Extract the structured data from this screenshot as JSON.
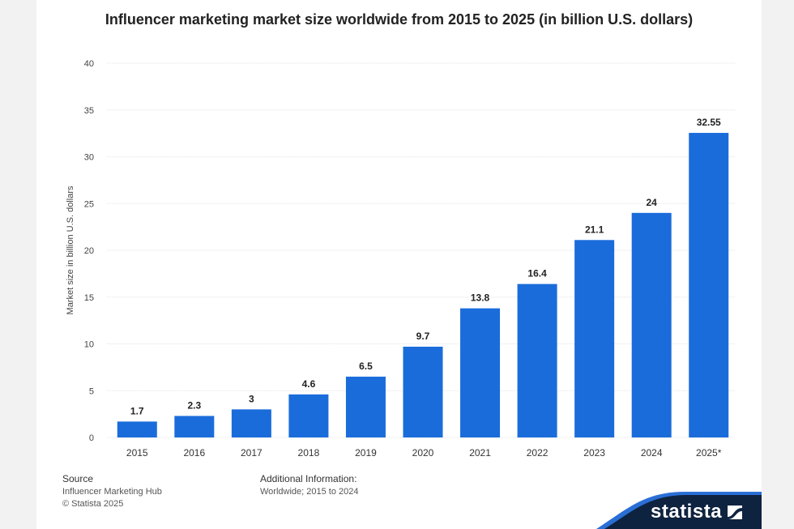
{
  "chart_data": {
    "type": "bar",
    "title": "Influencer marketing market size worldwide from 2015 to 2025 (in billion U.S. dollars)",
    "xlabel": "",
    "ylabel": "Market size in billion U.S. dollars",
    "ylim": [
      0,
      40
    ],
    "yticks": [
      "0",
      "5",
      "10",
      "15",
      "20",
      "25",
      "30",
      "35",
      "40"
    ],
    "categories": [
      "2015",
      "2016",
      "2017",
      "2018",
      "2019",
      "2020",
      "2021",
      "2022",
      "2023",
      "2024",
      "2025*"
    ],
    "values": [
      1.7,
      2.3,
      3,
      4.6,
      6.5,
      9.7,
      13.8,
      16.4,
      21.1,
      24,
      32.55
    ],
    "labels": [
      "1.7",
      "2.3",
      "3",
      "4.6",
      "6.5",
      "9.7",
      "13.8",
      "16.4",
      "21.1",
      "24",
      "32.55"
    ],
    "grid": true,
    "bar_color": "#1a6cdb"
  },
  "footer": {
    "source_heading": "Source",
    "source": "Influencer Marketing Hub",
    "copyright": "© Statista 2025",
    "info_heading": "Additional Information:",
    "info": "Worldwide; 2015 to 2024"
  },
  "brand": {
    "name": "statista"
  }
}
